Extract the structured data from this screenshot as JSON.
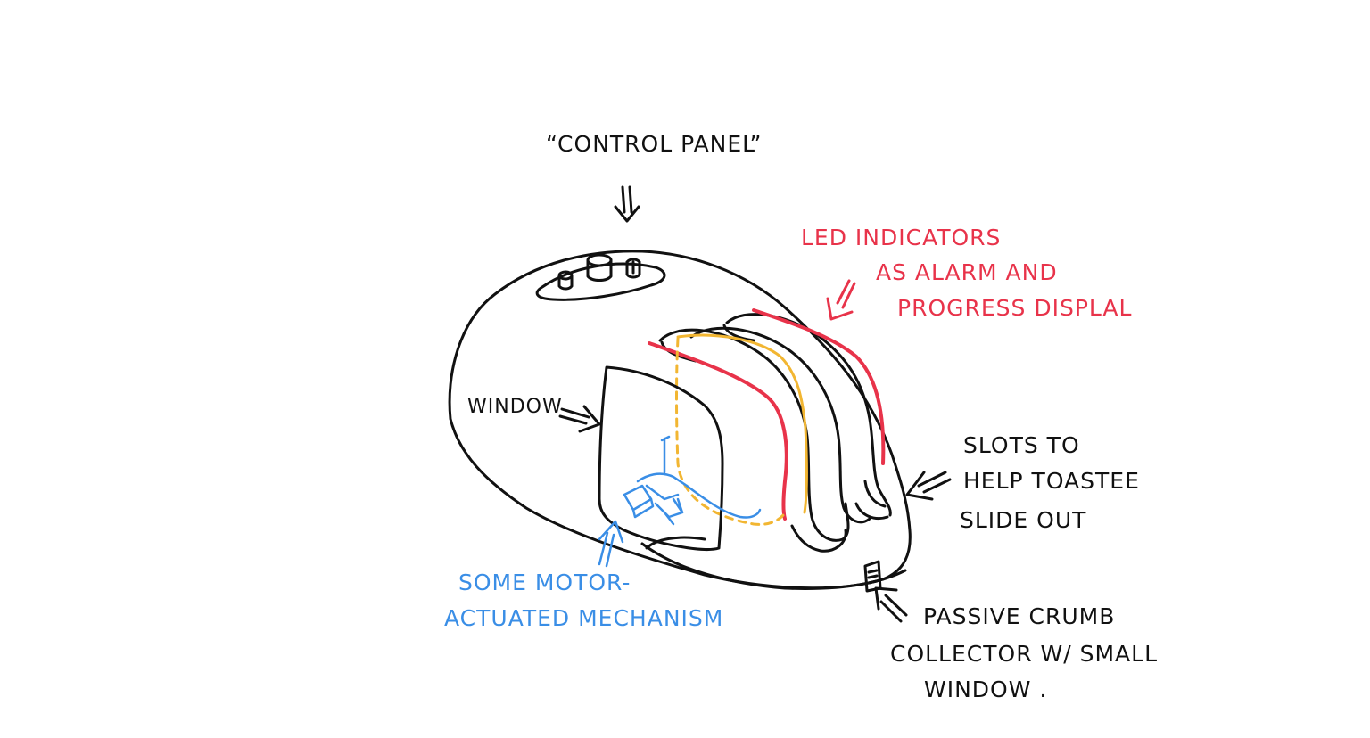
{
  "labels": {
    "control_panel": "“CONTROL PANEL”",
    "led_line1": "LED INDICATORS",
    "led_line2": "AS ALARM AND",
    "led_line3": "PROGRESS DISPLAL",
    "window": "WINDOW",
    "slots_line1": "SLOTS TO",
    "slots_line2": "HELP TOASTEE",
    "slots_line3": "SLIDE OUT",
    "mech_line1": "SOME MOTOR-",
    "mech_line2": "ACTUATED MECHANISM",
    "crumb_line1": "PASSIVE CRUMB",
    "crumb_line2": "COLLECTOR W/ SMALL",
    "crumb_line3": "WINDOW ."
  },
  "colors": {
    "ink": "#111111",
    "led_red": "#e8334a",
    "yellow": "#f2b632",
    "blue": "#3a8ee6"
  }
}
